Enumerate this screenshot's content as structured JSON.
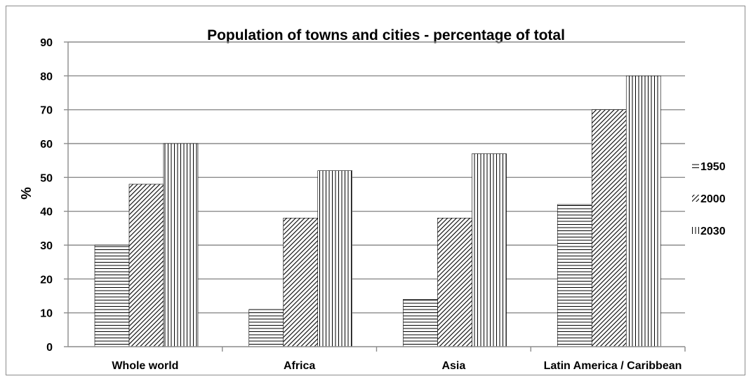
{
  "chart_data": {
    "type": "bar",
    "title": "Population of towns and cities - percentage of total",
    "xlabel": "",
    "ylabel": "%",
    "categories": [
      "Whole world",
      "Africa",
      "Asia",
      "Latin America / Caribbean"
    ],
    "series": [
      {
        "name": "1950",
        "values": [
          30,
          11,
          14,
          42
        ],
        "pattern": "horizontal-lines"
      },
      {
        "name": "2000",
        "values": [
          48,
          38,
          38,
          70
        ],
        "pattern": "diagonal-hatch"
      },
      {
        "name": "2030",
        "values": [
          60,
          52,
          57,
          80
        ],
        "pattern": "vertical-lines"
      }
    ],
    "ylim": [
      0,
      90
    ],
    "yticks": [
      0,
      10,
      20,
      30,
      40,
      50,
      60,
      70,
      80,
      90
    ],
    "grid": true,
    "legend_position": "right"
  }
}
